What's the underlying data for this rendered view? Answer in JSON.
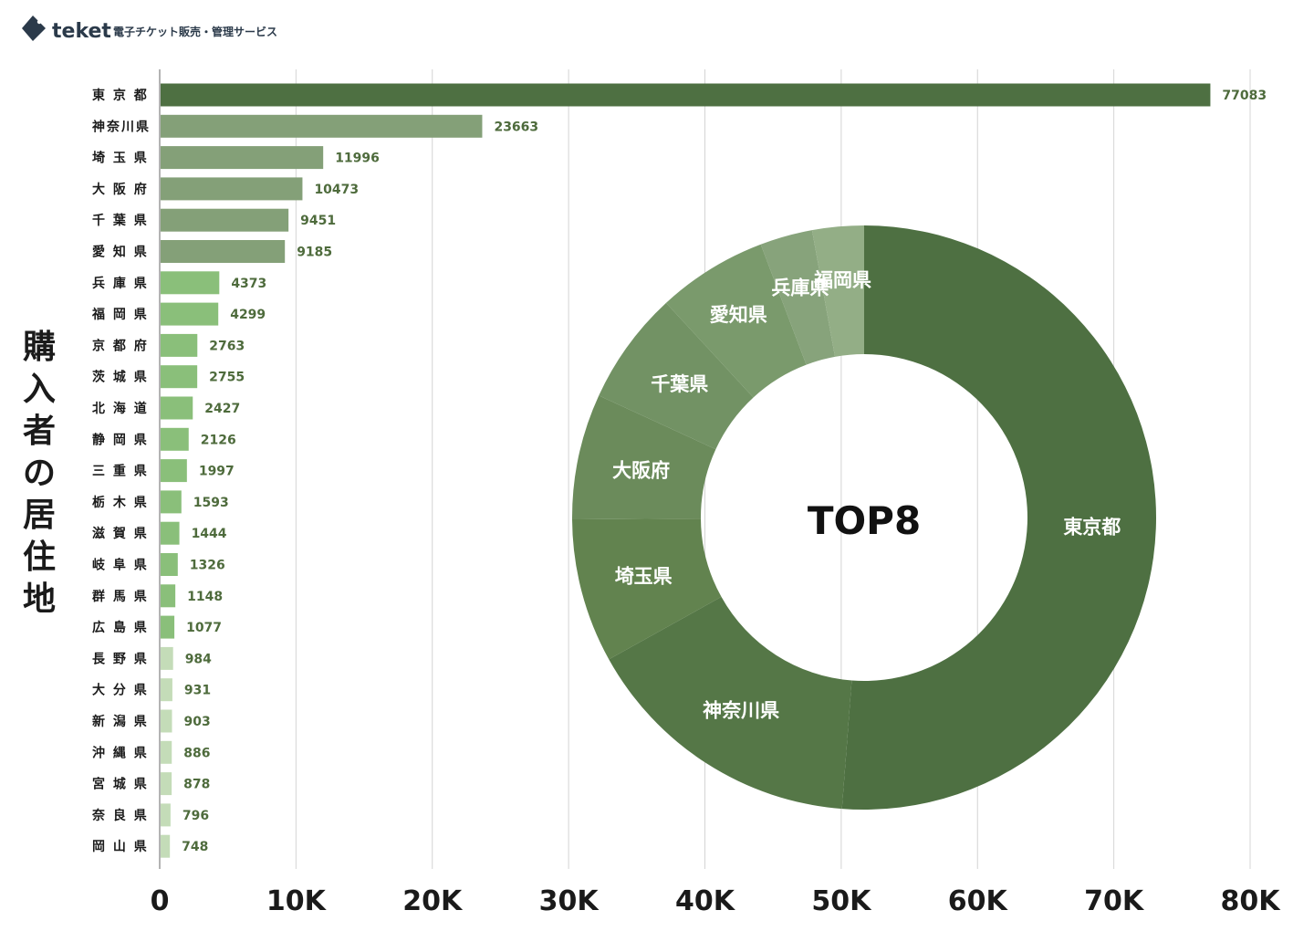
{
  "brand": {
    "name": "teket",
    "tagline": "電子チケット販売・管理サービス",
    "color": "#2b3a4a"
  },
  "chart_data": [
    {
      "type": "bar",
      "orientation": "horizontal",
      "ylabel": "購入者の居住地",
      "categories": [
        "東 京 都",
        "神奈川県",
        "埼 玉 県",
        "大 阪 府",
        "千 葉 県",
        "愛 知 県",
        "兵 庫 県",
        "福 岡 県",
        "京 都 府",
        "茨 城 県",
        "北 海 道",
        "静 岡 県",
        "三 重 県",
        "栃 木 県",
        "滋 賀 県",
        "岐 阜 県",
        "群 馬 県",
        "広 島 県",
        "長 野 県",
        "大 分 県",
        "新 潟 県",
        "沖 縄 県",
        "宮 城 県",
        "奈 良 県",
        "岡 山 県"
      ],
      "values": [
        77083,
        23663,
        11996,
        10473,
        9451,
        9185,
        4373,
        4299,
        2763,
        2755,
        2427,
        2126,
        1997,
        1593,
        1444,
        1326,
        1148,
        1077,
        984,
        931,
        903,
        886,
        878,
        796,
        748
      ],
      "xlim": [
        0,
        80000
      ],
      "xticks": [
        0,
        10000,
        20000,
        30000,
        40000,
        50000,
        60000,
        70000,
        80000
      ],
      "xtick_labels": [
        "0",
        "10K",
        "20K",
        "30K",
        "40K",
        "50K",
        "60K",
        "70K",
        "80K"
      ],
      "grid": "vertical",
      "colors": [
        "#4e7042",
        "#84a078",
        "#84a078",
        "#84a078",
        "#84a078",
        "#84a078",
        "#8abf7a",
        "#8abf7a",
        "#8abf7a",
        "#8abf7a",
        "#8abf7a",
        "#8abf7a",
        "#8abf7a",
        "#8abf7a",
        "#8abf7a",
        "#8abf7a",
        "#8abf7a",
        "#8abf7a",
        "#c4dcb8",
        "#c4dcb8",
        "#c4dcb8",
        "#c4dcb8",
        "#c4dcb8",
        "#c4dcb8",
        "#c4dcb8"
      ]
    },
    {
      "type": "pie",
      "style": "donut",
      "center_label": "TOP8",
      "categories": [
        "東京都",
        "神奈川県",
        "埼玉県",
        "大阪府",
        "千葉県",
        "愛知県",
        "兵庫県",
        "福岡県"
      ],
      "values": [
        77083,
        23663,
        11996,
        10473,
        9451,
        9185,
        4373,
        4299
      ],
      "colors": [
        "#4e7042",
        "#557747",
        "#62834f",
        "#6b8b5b",
        "#729264",
        "#7a9a6c",
        "#87a37b",
        "#93ae86"
      ]
    }
  ]
}
